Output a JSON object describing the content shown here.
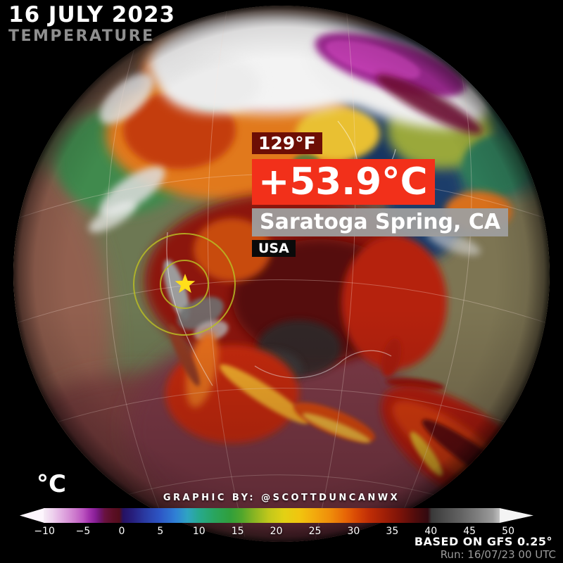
{
  "header": {
    "date": "16 JULY 2023",
    "subtitle": "TEMPERATURE"
  },
  "callout": {
    "fahrenheit": "129°F",
    "celsius": "+53.9°C",
    "location": "Saratoga Spring, CA",
    "country": "USA",
    "fahrenheit_bg": "#6d0e05",
    "celsius_bg": "#f2301a",
    "location_bg": "#9e9e9e",
    "country_bg": "#0a0a0a"
  },
  "marker": {
    "symbol": "star",
    "star_color": "#ffdf1a",
    "ring_color": "#b9bc25"
  },
  "credit": "GRAPHIC BY: @SCOTTDUNCANWX",
  "footer": {
    "model": "BASED ON GFS 0.25°",
    "run": "Run: 16/07/23 00 UTC"
  },
  "colorbar": {
    "unit_label": "°C",
    "range": [
      -10.1,
      48.9
    ],
    "ticks": [
      {
        "label": "−10",
        "value": -10
      },
      {
        "label": "−5",
        "value": -5
      },
      {
        "label": "0",
        "value": 0
      },
      {
        "label": "5",
        "value": 5
      },
      {
        "label": "10",
        "value": 10
      },
      {
        "label": "15",
        "value": 15
      },
      {
        "label": "20",
        "value": 20
      },
      {
        "label": "25",
        "value": 25
      },
      {
        "label": "30",
        "value": 30
      },
      {
        "label": "35",
        "value": 35
      },
      {
        "label": "40",
        "value": 40
      },
      {
        "label": "45",
        "value": 45
      },
      {
        "label": "50",
        "value": 50
      }
    ],
    "stops": [
      {
        "t": -10.1,
        "c": "#f6ecf6"
      },
      {
        "t": -9,
        "c": "#eed3ee"
      },
      {
        "t": -8,
        "c": "#e4b4e4"
      },
      {
        "t": -7,
        "c": "#d997d9"
      },
      {
        "t": -6,
        "c": "#cc78cc"
      },
      {
        "t": -5,
        "c": "#bb55c0"
      },
      {
        "t": -4.2,
        "c": "#a332ad"
      },
      {
        "t": -3.4,
        "c": "#871e95"
      },
      {
        "t": -2.8,
        "c": "#6f166e"
      },
      {
        "t": -2.2,
        "c": "#691240"
      },
      {
        "t": -1.2,
        "c": "#5c0f26"
      },
      {
        "t": -0.3,
        "c": "#520d1b"
      },
      {
        "t": 0.2,
        "c": "#251262"
      },
      {
        "t": 1.5,
        "c": "#27207f"
      },
      {
        "t": 3,
        "c": "#2a3aa2"
      },
      {
        "t": 5,
        "c": "#2d57c6"
      },
      {
        "t": 7,
        "c": "#2f80d5"
      },
      {
        "t": 8.5,
        "c": "#2fa4c2"
      },
      {
        "t": 10,
        "c": "#27a98e"
      },
      {
        "t": 12,
        "c": "#29a55e"
      },
      {
        "t": 14,
        "c": "#309f3c"
      },
      {
        "t": 15.5,
        "c": "#4fa62c"
      },
      {
        "t": 17,
        "c": "#84b323"
      },
      {
        "t": 19,
        "c": "#c0c71b"
      },
      {
        "t": 21,
        "c": "#e2d114"
      },
      {
        "t": 23,
        "c": "#f1c50f"
      },
      {
        "t": 25,
        "c": "#f2a90d"
      },
      {
        "t": 27,
        "c": "#ef8d0a"
      },
      {
        "t": 29,
        "c": "#e76506"
      },
      {
        "t": 30.5,
        "c": "#d64605"
      },
      {
        "t": 32,
        "c": "#c02e06"
      },
      {
        "t": 34,
        "c": "#a01f07"
      },
      {
        "t": 36,
        "c": "#7c1309"
      },
      {
        "t": 38,
        "c": "#500c0c"
      },
      {
        "t": 39.6,
        "c": "#320a10"
      },
      {
        "t": 40.1,
        "c": "#3a3a3a"
      },
      {
        "t": 42,
        "c": "#4f4f4f"
      },
      {
        "t": 44,
        "c": "#646464"
      },
      {
        "t": 46,
        "c": "#7e7e7e"
      },
      {
        "t": 48,
        "c": "#9b9b9b"
      },
      {
        "t": 48.9,
        "c": "#c2c2c2"
      }
    ]
  }
}
